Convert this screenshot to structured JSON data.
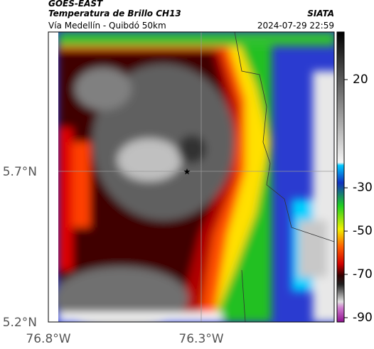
{
  "header": {
    "title": "GOES-EAST",
    "subtitle": "Temperatura de Brillo CH13",
    "location": "Vía Medellín - Quibdó 50km",
    "source": "SIATA",
    "datetime": "2024-07-29 22:59"
  },
  "map": {
    "yticks": [
      "5.7°N",
      "5.2°N"
    ],
    "xticks": [
      "76.8°W",
      "76.3°W"
    ]
  },
  "colorbar": {
    "lim": [
      -92,
      42
    ],
    "ticks": [
      20,
      -30,
      -50,
      -70,
      -90
    ]
  }
}
